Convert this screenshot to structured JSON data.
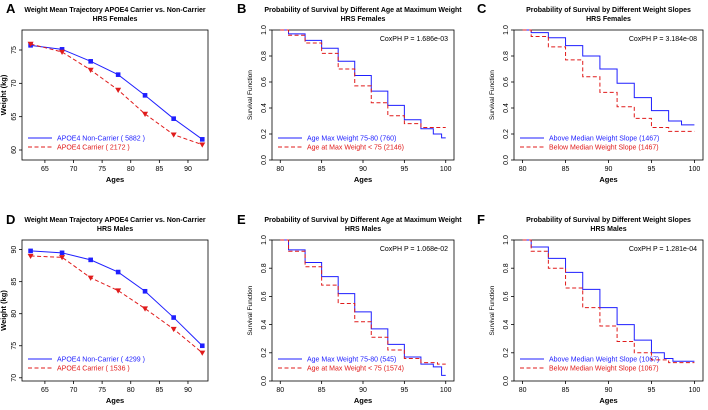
{
  "figure": {
    "colors": {
      "blue": "#1f1fff",
      "red": "#e01b1b",
      "axis": "#000000"
    }
  },
  "chart_data": [
    {
      "panel": "A",
      "type": "line",
      "title": "Weight Mean Trajectory APOE4 Carrier vs. Non-Carrier",
      "subtitle": "HRS Females",
      "xlabel": "Ages",
      "ylabel": "Weight (kg)",
      "xlim": [
        61,
        93.5
      ],
      "ylim": [
        58.5,
        78
      ],
      "xticks": [
        65,
        70,
        75,
        80,
        85,
        90
      ],
      "yticks": [
        60,
        65,
        70,
        75
      ],
      "legend_position": "bottom-left",
      "series": [
        {
          "name": "APOE4 Non-Carrier ( 5882 )",
          "color": "#1f1fff",
          "dash": false,
          "marker": "square",
          "x": [
            62.5,
            68,
            73,
            77.8,
            82.5,
            87.5,
            92.5
          ],
          "y": [
            75.7,
            75.1,
            73.3,
            71.3,
            68.2,
            64.7,
            61.6
          ]
        },
        {
          "name": "APOE4 Carrier ( 2172 )",
          "color": "#e01b1b",
          "dash": true,
          "marker": "triangle",
          "x": [
            62.5,
            68,
            73,
            77.8,
            82.5,
            87.5,
            92.5
          ],
          "y": [
            75.9,
            74.7,
            72.0,
            69.0,
            65.4,
            62.3,
            60.8
          ]
        }
      ]
    },
    {
      "panel": "B",
      "type": "line",
      "title": "Probability of Survival by Different Age at Maximum Weight",
      "subtitle": "HRS Females",
      "xlabel": "Ages",
      "ylabel": "Survival Function",
      "xlim": [
        79,
        101
      ],
      "ylim": [
        0,
        1
      ],
      "xticks": [
        80,
        85,
        90,
        95,
        100
      ],
      "yticks": [
        0.0,
        0.2,
        0.4,
        0.6,
        0.8,
        1.0
      ],
      "annotation": "CoxPH P = 1.686e-03",
      "legend_position": "bottom-left",
      "series": [
        {
          "name": "Age Max Weight 75-80 (760)",
          "color": "#1f1fff",
          "dash": false,
          "x": [
            80,
            82,
            84,
            86,
            88,
            90,
            92,
            94,
            96,
            98,
            99,
            100
          ],
          "y": [
            1.0,
            0.97,
            0.92,
            0.86,
            0.76,
            0.65,
            0.53,
            0.42,
            0.31,
            0.24,
            0.2,
            0.17
          ]
        },
        {
          "name": "Age at Max Weight < 75 (2146)",
          "color": "#e01b1b",
          "dash": true,
          "x": [
            80,
            82,
            84,
            86,
            88,
            90,
            92,
            94,
            96,
            98,
            100
          ],
          "y": [
            1.0,
            0.96,
            0.9,
            0.82,
            0.7,
            0.57,
            0.44,
            0.34,
            0.28,
            0.25,
            0.25
          ]
        }
      ]
    },
    {
      "panel": "C",
      "type": "line",
      "title": "Probability of Survival by Different Weight Slopes",
      "subtitle": "HRS Females",
      "xlabel": "Ages",
      "ylabel": "Survival Function",
      "xlim": [
        79,
        101
      ],
      "ylim": [
        0,
        1
      ],
      "xticks": [
        80,
        85,
        90,
        95,
        100
      ],
      "yticks": [
        0.0,
        0.2,
        0.4,
        0.6,
        0.8,
        1.0
      ],
      "annotation": "CoxPH P = 3.184e-08",
      "legend_position": "bottom-left",
      "series": [
        {
          "name": "Above Median Weight Slope (1467)",
          "color": "#1f1fff",
          "dash": false,
          "x": [
            80,
            82,
            84,
            86,
            88,
            90,
            92,
            94,
            96,
            98,
            99,
            100
          ],
          "y": [
            1.0,
            0.98,
            0.94,
            0.88,
            0.8,
            0.7,
            0.59,
            0.48,
            0.38,
            0.3,
            0.27,
            0.27
          ]
        },
        {
          "name": "Below Median Weight Slope (1467)",
          "color": "#e01b1b",
          "dash": true,
          "x": [
            80,
            82,
            84,
            86,
            88,
            90,
            92,
            94,
            96,
            98,
            100
          ],
          "y": [
            1.0,
            0.95,
            0.87,
            0.77,
            0.64,
            0.52,
            0.41,
            0.32,
            0.25,
            0.22,
            0.22
          ]
        }
      ]
    },
    {
      "panel": "D",
      "type": "line",
      "title": "Weight Mean Trajectory APOE4 Carrier vs. Non-Carrier",
      "subtitle": "HRS Males",
      "xlabel": "Ages",
      "ylabel": "Weight (kg)",
      "xlim": [
        61,
        93.5
      ],
      "ylim": [
        69.5,
        91.5
      ],
      "xticks": [
        65,
        70,
        75,
        80,
        85,
        90
      ],
      "yticks": [
        70,
        75,
        80,
        85,
        90
      ],
      "legend_position": "bottom-left",
      "series": [
        {
          "name": "APOE4 Non-Carrier ( 4299 )",
          "color": "#1f1fff",
          "dash": false,
          "marker": "square",
          "x": [
            62.5,
            68,
            73,
            77.8,
            82.5,
            87.5,
            92.5
          ],
          "y": [
            89.8,
            89.5,
            88.4,
            86.5,
            83.5,
            79.4,
            75.0
          ]
        },
        {
          "name": "APOE4 Carrier ( 1536 )",
          "color": "#e01b1b",
          "dash": true,
          "marker": "triangle",
          "x": [
            62.5,
            68,
            73,
            77.8,
            82.5,
            87.5,
            92.5
          ],
          "y": [
            89.0,
            88.8,
            85.6,
            83.6,
            80.8,
            77.6,
            73.9
          ]
        }
      ]
    },
    {
      "panel": "E",
      "type": "line",
      "title": "Probability of Survival by Different Age at Maximum Weight",
      "subtitle": "HRS Males",
      "xlabel": "Ages",
      "ylabel": "Survival Function",
      "xlim": [
        79,
        101
      ],
      "ylim": [
        0,
        1
      ],
      "xticks": [
        80,
        85,
        90,
        95,
        100
      ],
      "yticks": [
        0.0,
        0.2,
        0.4,
        0.6,
        0.8,
        1.0
      ],
      "annotation": "CoxPH P = 1.068e-02",
      "legend_position": "bottom-left",
      "series": [
        {
          "name": "Age Max Weight 75-80 (545)",
          "color": "#1f1fff",
          "dash": false,
          "x": [
            80,
            82,
            84,
            86,
            88,
            90,
            92,
            94,
            96,
            98,
            99,
            100
          ],
          "y": [
            1.0,
            0.93,
            0.84,
            0.74,
            0.62,
            0.49,
            0.37,
            0.26,
            0.17,
            0.12,
            0.1,
            0.04
          ]
        },
        {
          "name": "Age at Max Weight < 75 (1574)",
          "color": "#e01b1b",
          "dash": true,
          "x": [
            80,
            82,
            84,
            86,
            88,
            90,
            92,
            94,
            96,
            98,
            100
          ],
          "y": [
            1.0,
            0.92,
            0.81,
            0.68,
            0.55,
            0.42,
            0.31,
            0.22,
            0.16,
            0.13,
            0.12
          ]
        }
      ]
    },
    {
      "panel": "F",
      "type": "line",
      "title": "Probability of Survival by Different Weight Slopes",
      "subtitle": "HRS Males",
      "xlabel": "Ages",
      "ylabel": "Survival Function",
      "xlim": [
        79,
        101
      ],
      "ylim": [
        0,
        1
      ],
      "xticks": [
        80,
        85,
        90,
        95,
        100
      ],
      "yticks": [
        0.0,
        0.2,
        0.4,
        0.6,
        0.8,
        1.0
      ],
      "annotation": "CoxPH P = 1.281e-04",
      "legend_position": "bottom-left",
      "series": [
        {
          "name": "Above Median Weight Slope (1067)",
          "color": "#1f1fff",
          "dash": false,
          "x": [
            80,
            82,
            84,
            86,
            88,
            90,
            92,
            94,
            96,
            97,
            98,
            100
          ],
          "y": [
            1.0,
            0.95,
            0.87,
            0.77,
            0.65,
            0.52,
            0.4,
            0.29,
            0.2,
            0.16,
            0.14,
            0.14
          ]
        },
        {
          "name": "Below Median Weight Slope (1067)",
          "color": "#e01b1b",
          "dash": true,
          "x": [
            80,
            82,
            84,
            86,
            88,
            90,
            92,
            94,
            96,
            98,
            100
          ],
          "y": [
            1.0,
            0.92,
            0.8,
            0.66,
            0.52,
            0.39,
            0.28,
            0.2,
            0.15,
            0.13,
            0.13
          ]
        }
      ]
    }
  ]
}
